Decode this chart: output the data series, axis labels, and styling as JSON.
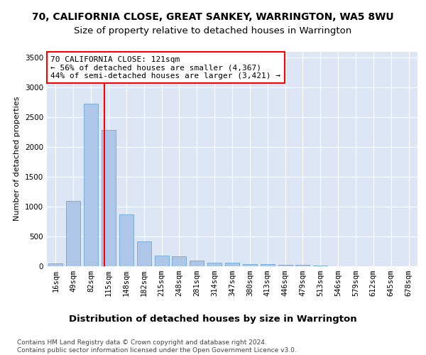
{
  "title": "70, CALIFORNIA CLOSE, GREAT SANKEY, WARRINGTON, WA5 8WU",
  "subtitle": "Size of property relative to detached houses in Warrington",
  "xlabel": "Distribution of detached houses by size in Warrington",
  "ylabel": "Number of detached properties",
  "categories": [
    "16sqm",
    "49sqm",
    "82sqm",
    "115sqm",
    "148sqm",
    "182sqm",
    "215sqm",
    "248sqm",
    "281sqm",
    "314sqm",
    "347sqm",
    "380sqm",
    "413sqm",
    "446sqm",
    "479sqm",
    "513sqm",
    "546sqm",
    "579sqm",
    "612sqm",
    "645sqm",
    "678sqm"
  ],
  "values": [
    50,
    1100,
    2720,
    2280,
    870,
    420,
    175,
    165,
    90,
    60,
    55,
    30,
    30,
    20,
    20,
    10,
    5,
    5,
    5,
    3,
    2
  ],
  "bar_color": "#aec6e8",
  "bar_edge_color": "#5a9fd4",
  "bg_color": "#dde6f5",
  "grid_color": "#ffffff",
  "vline_color": "red",
  "annotation_text": "70 CALIFORNIA CLOSE: 121sqm\n← 56% of detached houses are smaller (4,367)\n44% of semi-detached houses are larger (3,421) →",
  "annotation_box_color": "red",
  "ylim": [
    0,
    3600
  ],
  "yticks": [
    0,
    500,
    1000,
    1500,
    2000,
    2500,
    3000,
    3500
  ],
  "footer": "Contains HM Land Registry data © Crown copyright and database right 2024.\nContains public sector information licensed under the Open Government Licence v3.0.",
  "title_fontsize": 10,
  "subtitle_fontsize": 9.5,
  "xlabel_fontsize": 9.5,
  "ylabel_fontsize": 8,
  "tick_fontsize": 7.5,
  "annotation_fontsize": 8,
  "footer_fontsize": 6.5
}
